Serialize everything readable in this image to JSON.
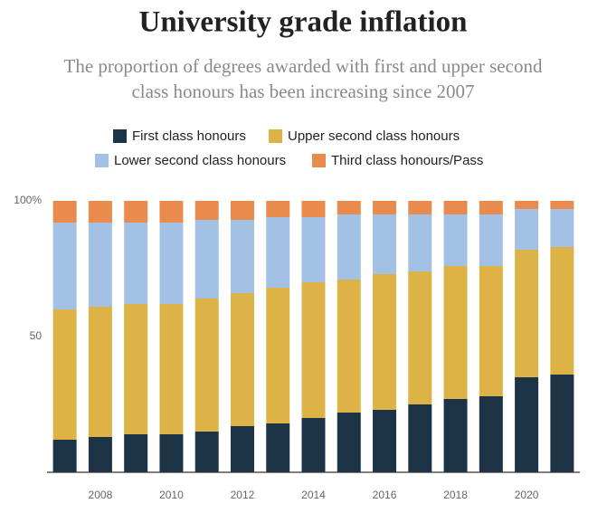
{
  "chart_data": {
    "type": "stacked-bar",
    "title": "University grade inflation",
    "subtitle": [
      "The proportion of degrees awarded with first and upper second",
      "class honours has been increasing since 2007"
    ],
    "categories": [
      null,
      "2008",
      null,
      "2010",
      null,
      "2012",
      null,
      "2014",
      null,
      "2016",
      null,
      "2018",
      null,
      "2020",
      null
    ],
    "series": [
      {
        "name": "First class honours",
        "color": "#1d3447",
        "values": [
          12,
          13,
          14,
          14,
          15,
          17,
          18,
          20,
          22,
          23,
          25,
          27,
          28,
          35,
          36
        ]
      },
      {
        "name": "Upper second class honours",
        "color": "#ddb247",
        "values": [
          48,
          48,
          48,
          48,
          49,
          49,
          50,
          50,
          49,
          50,
          49,
          49,
          48,
          47,
          47
        ]
      },
      {
        "name": "Lower second class honours",
        "color": "#a2c1e4",
        "values": [
          32,
          31,
          30,
          30,
          29,
          27,
          26,
          24,
          24,
          22,
          21,
          19,
          19,
          15,
          14
        ]
      },
      {
        "name": "Third class honours/Pass",
        "color": "#e88b4c",
        "values": [
          8,
          8,
          8,
          8,
          7,
          7,
          6,
          6,
          5,
          5,
          5,
          5,
          5,
          3,
          3
        ]
      }
    ],
    "ylim": [
      0,
      100
    ],
    "yticks": [
      50,
      {
        "value": 100,
        "label": "100%"
      }
    ]
  }
}
